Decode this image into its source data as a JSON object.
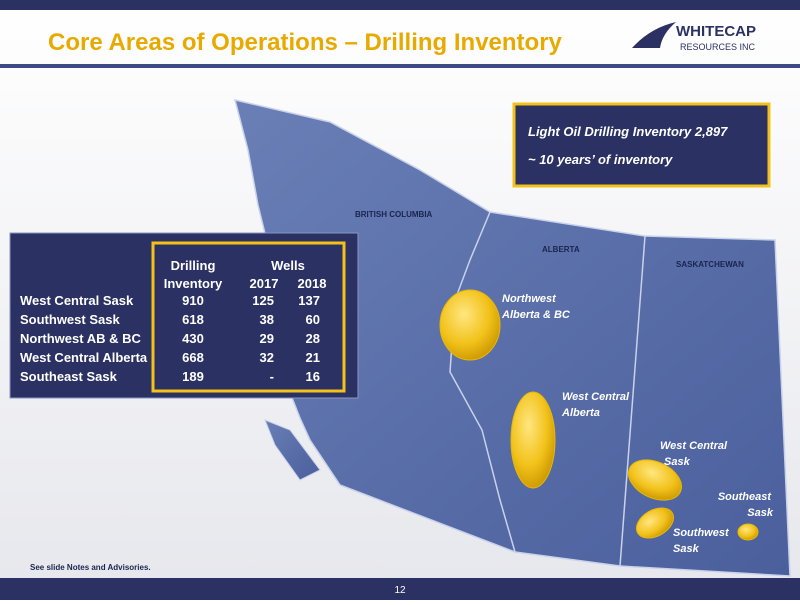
{
  "header": {
    "title": "Core Areas of Operations – Drilling Inventory",
    "logo": {
      "name": "WHITECAP",
      "sub": "RESOURCES INC"
    }
  },
  "callout": {
    "lines": [
      "Light Oil Drilling Inventory 2,897",
      "~ 10 years’ of inventory"
    ]
  },
  "table": {
    "headers": {
      "inventory": [
        "Drilling",
        "Inventory"
      ],
      "wells": "Wells",
      "years": [
        "2017",
        "2018"
      ]
    },
    "rows": [
      [
        "West Central Sask",
        910,
        125,
        137
      ],
      [
        "Southwest Sask",
        618,
        38,
        60
      ],
      [
        "Northwest AB & BC",
        430,
        29,
        28
      ],
      [
        "West Central Alberta",
        668,
        32,
        21
      ],
      [
        "Southeast Sask",
        189,
        "-",
        16
      ]
    ]
  },
  "map": {
    "provinces": [
      "BRITISH COLUMBIA",
      "ALBERTA",
      "SASKATCHEWAN"
    ],
    "areas": [
      [
        "Northwest",
        "Alberta & BC"
      ],
      [
        "West Central",
        "Alberta"
      ],
      [
        "West Central",
        "Sask"
      ],
      [
        "Southeast",
        "Sask"
      ],
      [
        "Southwest",
        "Sask"
      ]
    ]
  },
  "footer": {
    "note": "See slide Notes and Advisories.",
    "page": 12
  }
}
